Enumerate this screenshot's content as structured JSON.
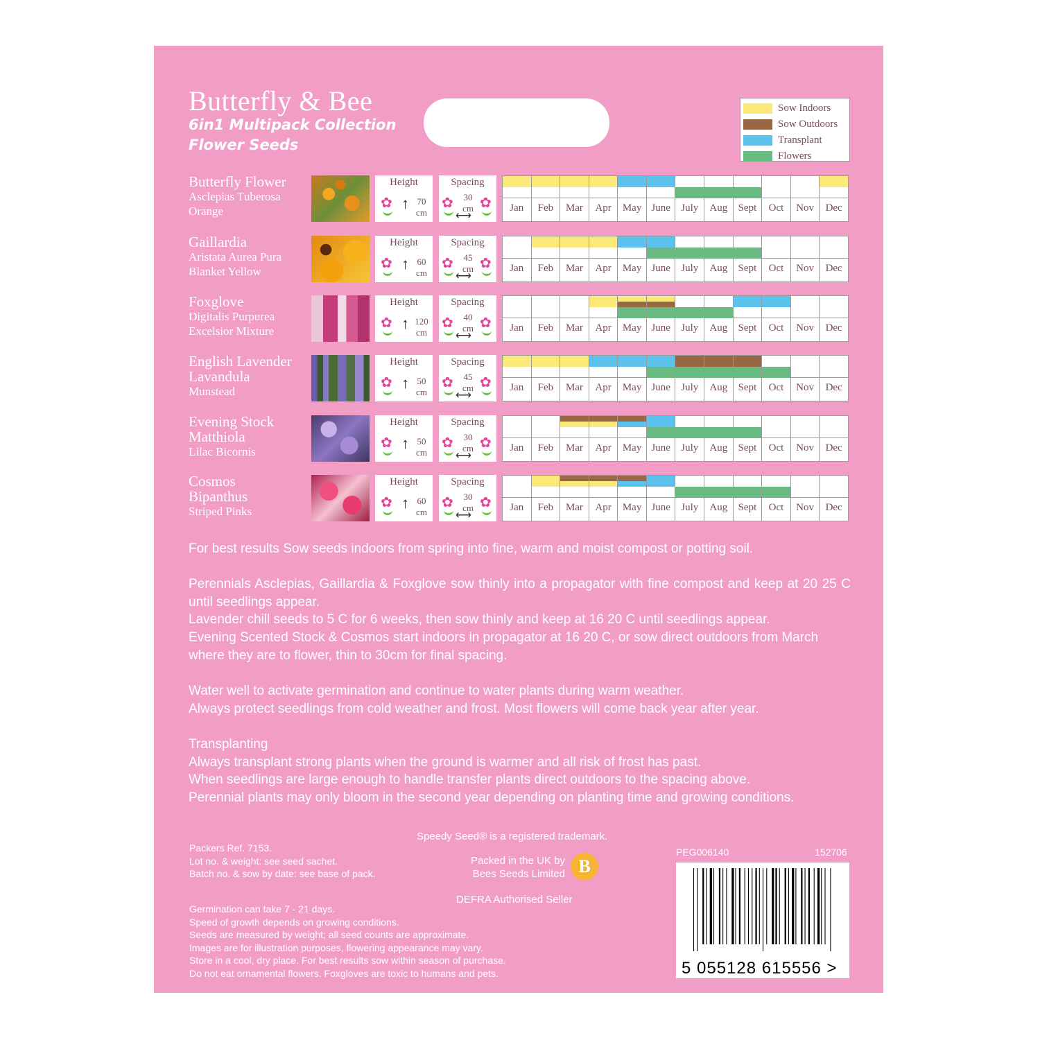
{
  "header": {
    "title": "Butterfly & Bee",
    "subtitle1": "6in1 Multipack Collection",
    "subtitle2": "Flower Seeds"
  },
  "legend": [
    {
      "label": "Sow Indoors",
      "color": "#fbe97a"
    },
    {
      "label": "Sow Outdoors",
      "color": "#976843"
    },
    {
      "label": "Transplant",
      "color": "#5cc3ef"
    },
    {
      "label": "Flowers",
      "color": "#6abb82"
    }
  ],
  "colors": {
    "background": "#f29dc5",
    "text_dark": "#7a4a63",
    "I": "#fbe97a",
    "O": "#976843",
    "T": "#5cc3ef",
    "F": "#6abb82"
  },
  "labels": {
    "height": "Height",
    "spacing": "Spacing",
    "unit": "cm"
  },
  "months": [
    "Jan",
    "Feb",
    "Mar",
    "Apr",
    "May",
    "June",
    "July",
    "Aug",
    "Sept",
    "Oct",
    "Nov",
    "Dec"
  ],
  "plants": [
    {
      "name": "Butterfly Flower",
      "line2": "Asclepias Tuberosa",
      "line3": "Orange",
      "height": "70",
      "spacing": "30",
      "sow": [
        "I",
        "I",
        "I",
        "I",
        "T",
        "T",
        "",
        "",
        "",
        "",
        "",
        "I"
      ],
      "flowers": [
        0,
        0,
        0,
        0,
        0,
        0,
        1,
        1,
        1,
        0,
        0,
        0
      ]
    },
    {
      "name": "Gaillardia",
      "line2": "Aristata Aurea Pura",
      "line3": "Blanket Yellow",
      "height": "60",
      "spacing": "45",
      "sow": [
        "",
        "I",
        "I",
        "I",
        "T",
        "T",
        "",
        "",
        "",
        "",
        "",
        ""
      ],
      "flowers": [
        0,
        0,
        0,
        0,
        0,
        1,
        1,
        1,
        1,
        0,
        0,
        0
      ]
    },
    {
      "name": "Foxglove",
      "line2": "Digitalis Purpurea",
      "line3": "Excelsior Mixture",
      "height": "120",
      "spacing": "40",
      "sow": [
        "",
        "",
        "",
        "I",
        "IO",
        "IO",
        "",
        "",
        "T",
        "T",
        "",
        ""
      ],
      "flowers": [
        0,
        0,
        0,
        0,
        1,
        1,
        1,
        1,
        0,
        0,
        0,
        0
      ]
    },
    {
      "name": "English Lavender",
      "line2": "Lavandula",
      "line3": "Munstead",
      "height": "50",
      "spacing": "45",
      "sow": [
        "I",
        "I",
        "I",
        "T",
        "T",
        "T",
        "O",
        "O",
        "O",
        "",
        "",
        ""
      ],
      "flowers": [
        0,
        0,
        0,
        0,
        0,
        1,
        1,
        1,
        1,
        1,
        0,
        0
      ]
    },
    {
      "name": "Evening Stock",
      "line2": "Matthiola",
      "line3": "Lilac Bicornis",
      "height": "50",
      "spacing": "30",
      "sow": [
        "",
        "",
        "OI",
        "OI",
        "OT",
        "T",
        "",
        "",
        "",
        "",
        "",
        ""
      ],
      "flowers": [
        0,
        0,
        0,
        0,
        0,
        1,
        1,
        1,
        1,
        0,
        0,
        0
      ]
    },
    {
      "name": "Cosmos",
      "line2": "Bipanthus",
      "line3": "Striped Pinks",
      "height": "60",
      "spacing": "30",
      "sow": [
        "",
        "I",
        "OI",
        "OI",
        "OT",
        "T",
        "",
        "",
        "",
        "",
        "",
        ""
      ],
      "flowers": [
        0,
        0,
        0,
        0,
        0,
        0,
        1,
        1,
        1,
        1,
        0,
        0
      ]
    }
  ],
  "instructions": {
    "p1": "For best results  Sow seeds indoors from spring into fine, warm and moist compost or potting soil.",
    "p2": "Perennials   Asclepias, Gaillardia & Foxglove  sow thinly into a propagator with fine compost and keep at 20 25 C until seedlings appear.",
    "p3": "Lavender  chill seeds to 5 C for 6 weeks, then sow thinly and keep at 16 20 C until seedlings appear.",
    "p4": "Evening Scented Stock & Cosmos  start indoors in propagator at 16 20 C, or sow direct outdoors from March where they are to flower, thin to 30cm for final spacing.",
    "p5": "Water well to activate germination and continue to water plants during warm weather.",
    "p6": "Always protect seedlings from cold weather and frost. Most flowers will come back year after year.",
    "p7": "Transplanting",
    "p8": "Always transplant strong plants when the ground is warmer and all risk of frost has past.",
    "p9": "When seedlings are large enough to handle transfer plants direct outdoors to the spacing above.",
    "p10": "Perennial plants may only bloom in the second year depending on planting time and growing conditions."
  },
  "footer": {
    "trademark": "Speedy Seed® is a registered trademark.",
    "packers": "Packers Ref. 7153.",
    "lot": "Lot no. & weight: see seed sachet.",
    "batch": "Batch no. & sow by date: see base of pack.",
    "packed1": "Packed in the UK by",
    "packed2": "Bees Seeds Limited",
    "logo": "B",
    "defra": "DEFRA Authorised Seller",
    "notes": [
      "Germination can take 7 - 21 days.",
      "Speed of growth depends on growing conditions.",
      "Seeds are measured by weight; all seed counts are approximate.",
      "Images are for illustration purposes, flowering appearance may vary.",
      "Store in a cool, dry place. For best results sow within season of purchase.",
      "Do not eat ornamental flowers.  Foxgloves are toxic to humans and pets."
    ],
    "code": "PEG006140",
    "code2": "152706",
    "barcode": "5 055128 615556 >"
  }
}
